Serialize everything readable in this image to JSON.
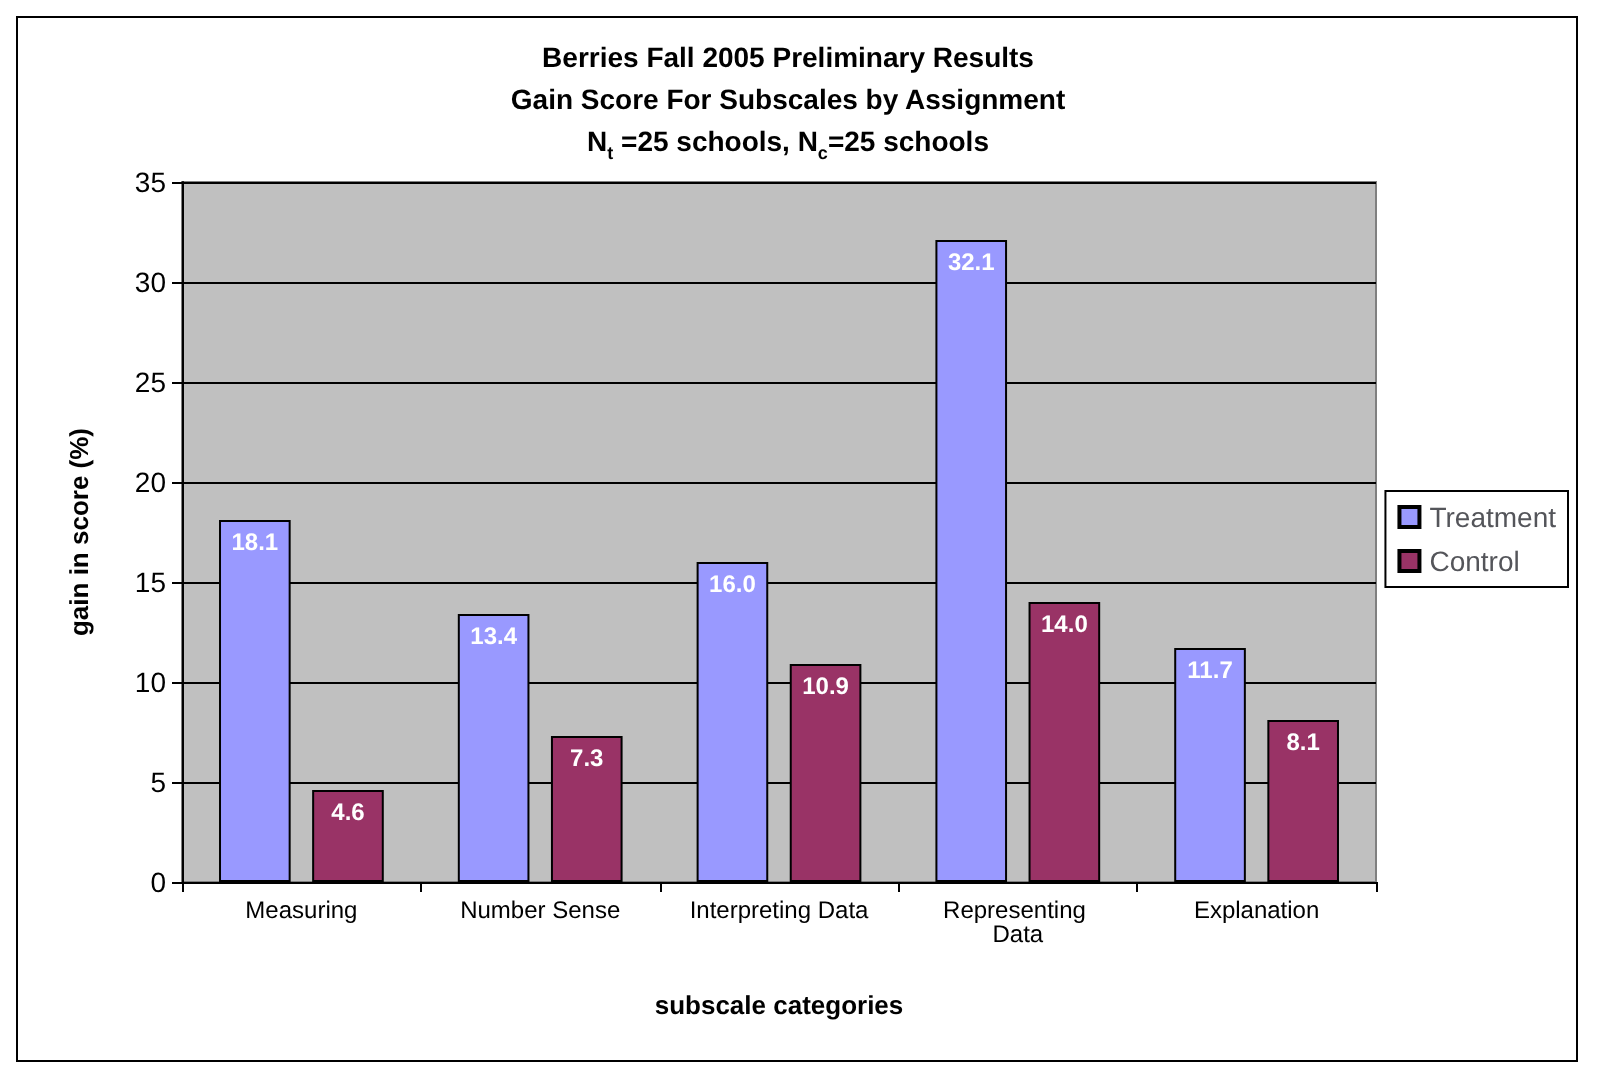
{
  "chart_data": {
    "type": "bar",
    "title": "Berries Fall 2005 Preliminary Results\nGain Score For Subscales by Assignment\nN$_{t}$ =25 schools, N$_{c}$=25 schools",
    "xlabel": "subscale categories",
    "ylabel": "gain in score (%)",
    "categories": [
      "Measuring",
      "Number Sense",
      "Interpreting Data",
      "Representing Data",
      "Explanation"
    ],
    "series": [
      {
        "name": "Treatment",
        "color": "#9999ff",
        "values": [
          18.1,
          13.4,
          16.0,
          32.1,
          11.7
        ],
        "value_labels": [
          "18.1",
          "13.4",
          "16.0",
          "32.1",
          "11.7"
        ]
      },
      {
        "name": "Control",
        "color": "#993366",
        "values": [
          4.6,
          7.3,
          10.9,
          14.0,
          8.1
        ],
        "value_labels": [
          "4.6",
          "7.3",
          "10.9",
          "14.0",
          "8.1"
        ]
      }
    ],
    "ylim": [
      0,
      35
    ],
    "yticks": [
      0,
      5,
      10,
      15,
      20,
      25,
      30,
      35
    ],
    "grid": "y",
    "legend": "right"
  }
}
